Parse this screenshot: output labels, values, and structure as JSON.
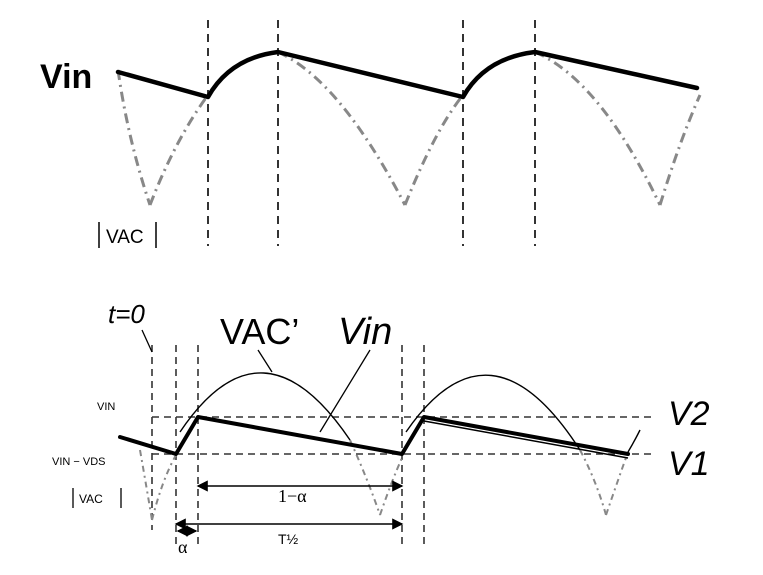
{
  "top_diagram": {
    "vin_label": "Vin",
    "vac_label": "VAC"
  },
  "bottom_diagram": {
    "t0_label": "t=0",
    "vac_prime_label": "VAC’",
    "vin_label": "Vin",
    "v_in_label": "VIN",
    "v_in_minus_vds_label": "VIN − VDS",
    "vac_label": "VAC",
    "v2_label": "V2",
    "v1_label": "V1",
    "one_minus_alpha_label": "1−α",
    "alpha_label": "α",
    "t_half_label": "T½"
  },
  "colors": {
    "ink": "#000000",
    "dashed_gray": "#7a7a7a",
    "background": "#ffffff"
  }
}
